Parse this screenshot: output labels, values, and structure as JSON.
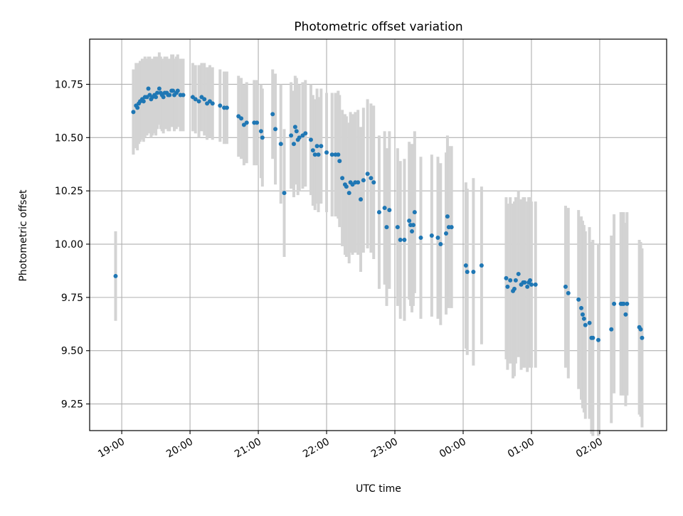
{
  "colors": {
    "point": "#1f77b4",
    "errorbar": "#d3d3d3",
    "grid": "#b0b0b0",
    "axes": "#000000"
  },
  "chart_data": {
    "type": "scatter",
    "title": "Photometric offset variation",
    "xlabel": "UTC time",
    "ylabel": "Photometric offset",
    "x_unit": "UTC hours since 19:00",
    "xlim": [
      -0.47,
      7.98
    ],
    "ylim": [
      9.125,
      10.962
    ],
    "grid": true,
    "x_ticks": [
      {
        "value": 0,
        "label": "19:00"
      },
      {
        "value": 1,
        "label": "20:00"
      },
      {
        "value": 2,
        "label": "21:00"
      },
      {
        "value": 3,
        "label": "22:00"
      },
      {
        "value": 4,
        "label": "23:00"
      },
      {
        "value": 5,
        "label": "00:00"
      },
      {
        "value": 6,
        "label": "01:00"
      },
      {
        "value": 7,
        "label": "02:00"
      }
    ],
    "y_ticks": [
      {
        "value": 9.25,
        "label": "9.25"
      },
      {
        "value": 9.5,
        "label": "9.50"
      },
      {
        "value": 9.75,
        "label": "9.75"
      },
      {
        "value": 10.0,
        "label": "10.00"
      },
      {
        "value": 10.25,
        "label": "10.25"
      },
      {
        "value": 10.5,
        "label": "10.50"
      },
      {
        "value": 10.75,
        "label": "10.75"
      }
    ],
    "series": [
      {
        "points": [
          [
            -0.09,
            9.85,
            0.21
          ],
          [
            0.17,
            10.62,
            0.2
          ],
          [
            0.21,
            10.65,
            0.2
          ],
          [
            0.23,
            10.64,
            0.2
          ],
          [
            0.25,
            10.66,
            0.19
          ],
          [
            0.27,
            10.67,
            0.19
          ],
          [
            0.3,
            10.68,
            0.19
          ],
          [
            0.32,
            10.67,
            0.19
          ],
          [
            0.34,
            10.69,
            0.19
          ],
          [
            0.37,
            10.69,
            0.18
          ],
          [
            0.39,
            10.73,
            0.15
          ],
          [
            0.41,
            10.7,
            0.18
          ],
          [
            0.43,
            10.68,
            0.18
          ],
          [
            0.45,
            10.69,
            0.18
          ],
          [
            0.48,
            10.7,
            0.18
          ],
          [
            0.5,
            10.69,
            0.18
          ],
          [
            0.52,
            10.71,
            0.17
          ],
          [
            0.55,
            10.73,
            0.17
          ],
          [
            0.57,
            10.71,
            0.17
          ],
          [
            0.59,
            10.7,
            0.17
          ],
          [
            0.61,
            10.69,
            0.17
          ],
          [
            0.63,
            10.71,
            0.17
          ],
          [
            0.66,
            10.71,
            0.17
          ],
          [
            0.68,
            10.7,
            0.17
          ],
          [
            0.7,
            10.7,
            0.17
          ],
          [
            0.73,
            10.72,
            0.17
          ],
          [
            0.75,
            10.72,
            0.17
          ],
          [
            0.77,
            10.7,
            0.17
          ],
          [
            0.8,
            10.71,
            0.17
          ],
          [
            0.82,
            10.72,
            0.17
          ],
          [
            0.86,
            10.7,
            0.17
          ],
          [
            0.9,
            10.7,
            0.17
          ],
          [
            1.04,
            10.69,
            0.16
          ],
          [
            1.08,
            10.68,
            0.16
          ],
          [
            1.13,
            10.67,
            0.17
          ],
          [
            1.17,
            10.69,
            0.16
          ],
          [
            1.21,
            10.68,
            0.17
          ],
          [
            1.25,
            10.66,
            0.17
          ],
          [
            1.29,
            10.67,
            0.17
          ],
          [
            1.33,
            10.66,
            0.17
          ],
          [
            1.44,
            10.65,
            0.17
          ],
          [
            1.5,
            10.64,
            0.17
          ],
          [
            1.54,
            10.64,
            0.17
          ],
          [
            1.71,
            10.6,
            0.19
          ],
          [
            1.75,
            10.59,
            0.19
          ],
          [
            1.79,
            10.56,
            0.19
          ],
          [
            1.83,
            10.57,
            0.19
          ],
          [
            1.94,
            10.57,
            0.2
          ],
          [
            1.98,
            10.57,
            0.2
          ],
          [
            2.04,
            10.53,
            0.22
          ],
          [
            2.06,
            10.5,
            0.23
          ],
          [
            2.21,
            10.61,
            0.21
          ],
          [
            2.25,
            10.54,
            0.26
          ],
          [
            2.33,
            10.47,
            0.28
          ],
          [
            2.38,
            10.24,
            0.3
          ],
          [
            2.48,
            10.51,
            0.25
          ],
          [
            2.52,
            10.47,
            0.25
          ],
          [
            2.54,
            10.55,
            0.24
          ],
          [
            2.56,
            10.53,
            0.25
          ],
          [
            2.58,
            10.49,
            0.26
          ],
          [
            2.6,
            10.5,
            0.25
          ],
          [
            2.65,
            10.51,
            0.25
          ],
          [
            2.69,
            10.52,
            0.25
          ],
          [
            2.77,
            10.49,
            0.26
          ],
          [
            2.8,
            10.44,
            0.26
          ],
          [
            2.83,
            10.42,
            0.26
          ],
          [
            2.86,
            10.46,
            0.27
          ],
          [
            2.88,
            10.42,
            0.27
          ],
          [
            2.92,
            10.46,
            0.27
          ],
          [
            3.0,
            10.43,
            0.28
          ],
          [
            3.08,
            10.42,
            0.29
          ],
          [
            3.13,
            10.42,
            0.29
          ],
          [
            3.17,
            10.42,
            0.3
          ],
          [
            3.19,
            10.39,
            0.31
          ],
          [
            3.23,
            10.31,
            0.32
          ],
          [
            3.27,
            10.28,
            0.33
          ],
          [
            3.29,
            10.27,
            0.33
          ],
          [
            3.33,
            10.24,
            0.33
          ],
          [
            3.35,
            10.29,
            0.33
          ],
          [
            3.38,
            10.28,
            0.33
          ],
          [
            3.42,
            10.29,
            0.33
          ],
          [
            3.46,
            10.29,
            0.34
          ],
          [
            3.5,
            10.21,
            0.34
          ],
          [
            3.54,
            10.3,
            0.34
          ],
          [
            3.6,
            10.33,
            0.35
          ],
          [
            3.65,
            10.31,
            0.35
          ],
          [
            3.69,
            10.29,
            0.36
          ],
          [
            3.77,
            10.15,
            0.36
          ],
          [
            3.85,
            10.17,
            0.36
          ],
          [
            3.88,
            10.08,
            0.37
          ],
          [
            3.92,
            10.16,
            0.37
          ],
          [
            4.04,
            10.08,
            0.37
          ],
          [
            4.08,
            10.02,
            0.37
          ],
          [
            4.14,
            10.02,
            0.38
          ],
          [
            4.21,
            10.11,
            0.37
          ],
          [
            4.23,
            10.09,
            0.38
          ],
          [
            4.25,
            10.06,
            0.38
          ],
          [
            4.27,
            10.09,
            0.38
          ],
          [
            4.29,
            10.15,
            0.38
          ],
          [
            4.38,
            10.03,
            0.38
          ],
          [
            4.54,
            10.04,
            0.38
          ],
          [
            4.63,
            10.03,
            0.38
          ],
          [
            4.67,
            10.0,
            0.38
          ],
          [
            4.75,
            10.05,
            0.38
          ],
          [
            4.77,
            10.13,
            0.38
          ],
          [
            4.79,
            10.08,
            0.38
          ],
          [
            4.83,
            10.08,
            0.38
          ],
          [
            5.04,
            9.9,
            0.39
          ],
          [
            5.06,
            9.87,
            0.39
          ],
          [
            5.15,
            9.87,
            0.44
          ],
          [
            5.27,
            9.9,
            0.37
          ],
          [
            5.63,
            9.84,
            0.38
          ],
          [
            5.65,
            9.8,
            0.39
          ],
          [
            5.69,
            9.83,
            0.39
          ],
          [
            5.73,
            9.78,
            0.41
          ],
          [
            5.75,
            9.79,
            0.41
          ],
          [
            5.77,
            9.83,
            0.39
          ],
          [
            5.81,
            9.86,
            0.39
          ],
          [
            5.85,
            9.81,
            0.4
          ],
          [
            5.88,
            9.82,
            0.4
          ],
          [
            5.9,
            9.82,
            0.4
          ],
          [
            5.94,
            9.8,
            0.4
          ],
          [
            5.96,
            9.82,
            0.4
          ],
          [
            5.98,
            9.83,
            0.39
          ],
          [
            6.0,
            9.81,
            0.39
          ],
          [
            6.06,
            9.81,
            0.39
          ],
          [
            6.5,
            9.8,
            0.38
          ],
          [
            6.54,
            9.77,
            0.4
          ],
          [
            6.69,
            9.74,
            0.42
          ],
          [
            6.73,
            9.7,
            0.43
          ],
          [
            6.75,
            9.67,
            0.44
          ],
          [
            6.77,
            9.65,
            0.44
          ],
          [
            6.79,
            9.62,
            0.44
          ],
          [
            6.85,
            9.63,
            0.45
          ],
          [
            6.88,
            9.56,
            0.45
          ],
          [
            6.9,
            9.56,
            0.46
          ],
          [
            6.98,
            9.55,
            0.45
          ],
          [
            7.17,
            9.6,
            0.44
          ],
          [
            7.21,
            9.72,
            0.42
          ],
          [
            7.31,
            9.72,
            0.43
          ],
          [
            7.33,
            9.72,
            0.43
          ],
          [
            7.35,
            9.72,
            0.43
          ],
          [
            7.38,
            9.67,
            0.43
          ],
          [
            7.4,
            9.72,
            0.43
          ],
          [
            7.58,
            9.61,
            0.41
          ],
          [
            7.6,
            9.6,
            0.41
          ],
          [
            7.62,
            9.56,
            0.42
          ]
        ]
      }
    ]
  }
}
